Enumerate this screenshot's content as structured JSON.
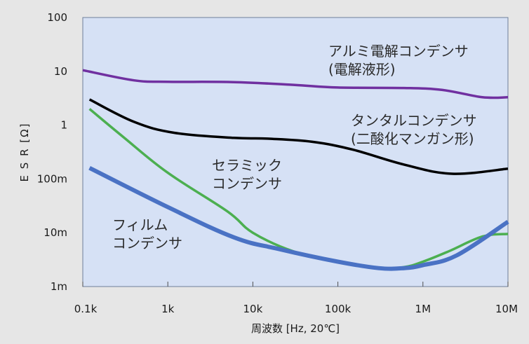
{
  "chart_data": {
    "type": "line",
    "xscale": "log",
    "yscale": "log",
    "xlim": [
      100,
      10000000
    ],
    "ylim": [
      0.001,
      100
    ],
    "xlabel": "周波数 [Hz, 20℃]",
    "ylabel": "E S R [Ω]",
    "x_tick_values": [
      100,
      1000,
      10000,
      100000,
      1000000,
      10000000
    ],
    "x_tick_labels": [
      "0.1k",
      "1k",
      "10k",
      "100k",
      "1M",
      "10M"
    ],
    "y_tick_values": [
      100,
      10,
      1,
      0.1,
      0.01,
      0.001
    ],
    "y_tick_labels": [
      "100",
      "10",
      "1",
      "100m",
      "10m",
      "1m"
    ],
    "grid": false,
    "background": "#d6e1f5",
    "series": [
      {
        "name": "アルミ電解コンデンサ(電解液形)",
        "label_lines": [
          "アルミ電解コンデンサ",
          "(電解液形)"
        ],
        "color": "#7030a0",
        "x": [
          100,
          400,
          1000,
          6000,
          30000,
          100000,
          600000,
          1700000,
          5000000,
          10000000
        ],
        "y": [
          10.5,
          6.8,
          6.4,
          6.3,
          5.6,
          5.0,
          4.9,
          4.5,
          3.3,
          3.3
        ]
      },
      {
        "name": "タンタルコンデンサ(二酸化マンガン形)",
        "label_lines": [
          "タンタルコンデンサ",
          "(二酸化マンガン形)"
        ],
        "color": "#000000",
        "x": [
          120,
          400,
          1200,
          6000,
          15000,
          50000,
          150000,
          600000,
          2200000,
          10000000
        ],
        "y": [
          3.0,
          1.15,
          0.72,
          0.58,
          0.56,
          0.49,
          0.35,
          0.185,
          0.125,
          0.155
        ]
      },
      {
        "name": "セラミックコンデンサ",
        "label_lines": [
          "セラミック",
          "コンデンサ"
        ],
        "color": "#4caf50",
        "x": [
          120,
          300,
          1000,
          5000,
          10000,
          30000,
          100000,
          300000,
          600000,
          1000000,
          2000000,
          5000000,
          10000000
        ],
        "y": [
          2.0,
          0.6,
          0.13,
          0.025,
          0.01,
          0.0045,
          0.0029,
          0.0022,
          0.0023,
          0.0029,
          0.0045,
          0.0085,
          0.0095
        ]
      },
      {
        "name": "フィルムコンデンサ",
        "label_lines": [
          "フィルム",
          "コンデンサ"
        ],
        "color": "#4a72c4",
        "x": [
          120,
          1000,
          6000,
          20000,
          100000,
          300000,
          600000,
          1000000,
          2500000,
          10000000
        ],
        "y": [
          0.16,
          0.03,
          0.0082,
          0.005,
          0.0029,
          0.0022,
          0.0022,
          0.0025,
          0.0038,
          0.016
        ]
      }
    ]
  }
}
